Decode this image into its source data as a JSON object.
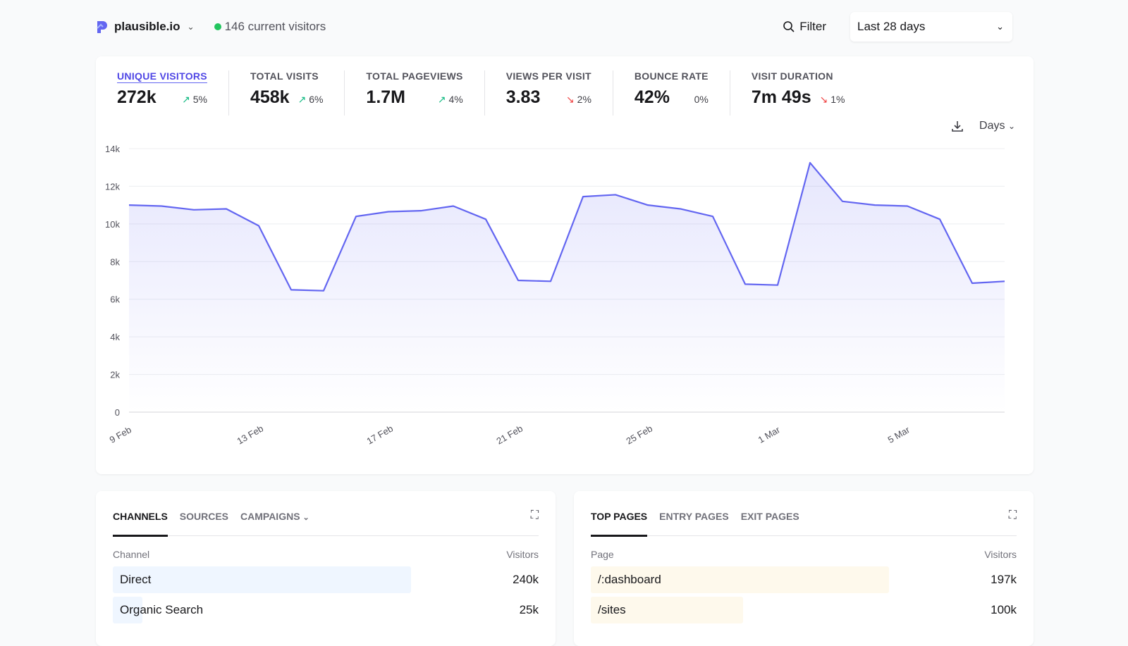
{
  "header": {
    "site": "plausible.io",
    "current_visitors": "146 current visitors",
    "filter_label": "Filter",
    "period": "Last 28 days"
  },
  "stats": [
    {
      "label": "UNIQUE VISITORS",
      "value": "272k",
      "change": "5%",
      "direction": "up",
      "active": true
    },
    {
      "label": "TOTAL VISITS",
      "value": "458k",
      "change": "6%",
      "direction": "up"
    },
    {
      "label": "TOTAL PAGEVIEWS",
      "value": "1.7M",
      "change": "4%",
      "direction": "up"
    },
    {
      "label": "VIEWS PER VISIT",
      "value": "3.83",
      "change": "2%",
      "direction": "down"
    },
    {
      "label": "BOUNCE RATE",
      "value": "42%",
      "change": "0%",
      "direction": "none"
    },
    {
      "label": "VISIT DURATION",
      "value": "7m 49s",
      "change": "1%",
      "direction": "down"
    }
  ],
  "chart_tools": {
    "interval": "Days"
  },
  "colors": {
    "accent": "#6366f1",
    "up": "#10b981",
    "down": "#ef4444",
    "channel_bar": "#eff6ff",
    "page_bar": "#fef9ec"
  },
  "chart_data": {
    "type": "area",
    "x": [
      "9 Feb",
      "10 Feb",
      "11 Feb",
      "12 Feb",
      "13 Feb",
      "14 Feb",
      "15 Feb",
      "16 Feb",
      "17 Feb",
      "18 Feb",
      "19 Feb",
      "20 Feb",
      "21 Feb",
      "22 Feb",
      "23 Feb",
      "24 Feb",
      "25 Feb",
      "26 Feb",
      "27 Feb",
      "28 Feb",
      "1 Mar",
      "2 Mar",
      "3 Mar",
      "4 Mar",
      "5 Mar",
      "6 Mar",
      "7 Mar",
      "8 Mar"
    ],
    "values": [
      11000,
      10950,
      10750,
      10800,
      9900,
      6500,
      6450,
      10400,
      10650,
      10700,
      10950,
      10250,
      7000,
      6950,
      11450,
      11550,
      11000,
      10800,
      10400,
      6800,
      6750,
      13250,
      11200,
      11000,
      10950,
      10250,
      6850,
      6950
    ],
    "xticks": [
      "9 Feb",
      "13 Feb",
      "17 Feb",
      "21 Feb",
      "25 Feb",
      "1 Mar",
      "5 Mar"
    ],
    "yticks": [
      "0",
      "2k",
      "4k",
      "6k",
      "8k",
      "10k",
      "12k",
      "14k"
    ],
    "ylim": [
      0,
      14000
    ],
    "grid": true
  },
  "channels": {
    "tabs": [
      "CHANNELS",
      "SOURCES",
      "CAMPAIGNS"
    ],
    "col1": "Channel",
    "col2": "Visitors",
    "rows": [
      {
        "name": "Direct",
        "visitors": "240k",
        "share": 1
      },
      {
        "name": "Organic Search",
        "visitors": "25k",
        "share": 0.1
      }
    ]
  },
  "pages": {
    "tabs": [
      "TOP PAGES",
      "ENTRY PAGES",
      "EXIT PAGES"
    ],
    "col1": "Page",
    "col2": "Visitors",
    "rows": [
      {
        "name": "/:dashboard",
        "visitors": "197k",
        "share": 1
      },
      {
        "name": "/sites",
        "visitors": "100k",
        "share": 0.51
      }
    ]
  }
}
